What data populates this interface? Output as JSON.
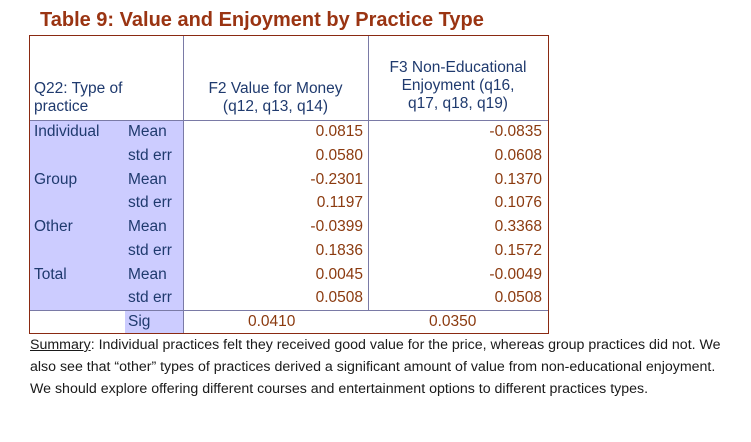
{
  "title": "Table 9: Value and Enjoyment by Practice Type",
  "table": {
    "header": {
      "row_col_label": [
        "Q22: Type of",
        "practice"
      ],
      "f2_label": [
        "F2 Value for Money",
        "(q12, q13, q14)"
      ],
      "f3_label": [
        "F3 Non-Educational",
        "Enjoyment (q16,",
        "q17, q18, q19)"
      ]
    },
    "rows": [
      {
        "group": "Individual",
        "stat": "Mean",
        "f2": "0.0815",
        "f3": "-0.0835"
      },
      {
        "group": "",
        "stat": "std err",
        "f2": "0.0580",
        "f3": "0.0608"
      },
      {
        "group": "Group",
        "stat": "Mean",
        "f2": "-0.2301",
        "f3": "0.1370"
      },
      {
        "group": "",
        "stat": "std err",
        "f2": "0.1197",
        "f3": "0.1076"
      },
      {
        "group": "Other",
        "stat": "Mean",
        "f2": "-0.0399",
        "f3": "0.3368"
      },
      {
        "group": "",
        "stat": "std err",
        "f2": "0.1836",
        "f3": "0.1572"
      },
      {
        "group": "Total",
        "stat": "Mean",
        "f2": "0.0045",
        "f3": "-0.0049"
      },
      {
        "group": "",
        "stat": "std err",
        "f2": "0.0508",
        "f3": "0.0508"
      },
      {
        "group": "",
        "stat": "Sig",
        "f2": "0.0410",
        "f3": "0.0350"
      }
    ]
  },
  "summary": {
    "lead": "Summary",
    "text": ": Individual practices felt they received good value for the price, whereas group practices did not. We also see that “other” types of practices derived a significant amount of value from non-educational enjoyment. We should explore offering different courses and entertainment options to different practices types."
  },
  "colors": {
    "title": "#9a3412",
    "label_text": "#1f3a6e",
    "value_text": "#8b3a0f",
    "row_shade": "#ccccff"
  }
}
